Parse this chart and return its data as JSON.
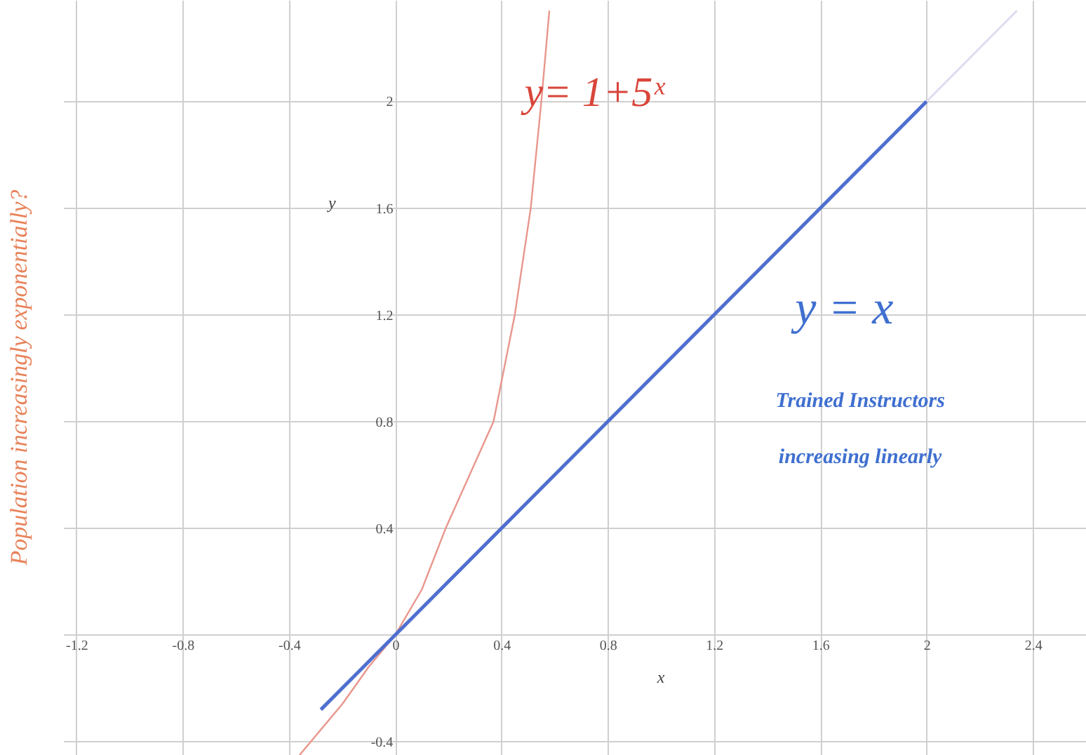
{
  "chart_data": {
    "type": "line",
    "xlabel": "x",
    "ylabel": "y",
    "series": [
      {
        "color": "#e8968c",
        "x": [
          -0.36,
          -0.2,
          -0.1,
          0,
          0.1,
          0.19,
          0.28,
          0.37,
          0.45,
          0.51,
          0.55,
          0.58
        ],
        "values": [
          -0.45,
          -0.26,
          -0.12,
          0,
          0.17,
          0.4,
          0.6,
          0.8,
          1.2,
          1.6,
          2.0,
          2.34
        ]
      },
      {
        "color": "#4f6fcf",
        "x": [
          -0.28,
          2
        ],
        "values": [
          -0.28,
          2
        ]
      },
      {
        "color": "#dcdcf0",
        "x": [
          2,
          2.34
        ],
        "values": [
          2,
          2.34
        ]
      }
    ],
    "annotations": [
      "y= 1+5ˣ",
      "y = x",
      "Trained Instructors",
      "increasing linearly",
      "Population increasingly exponentially?"
    ],
    "xlim": [
      -1.25,
      2.6
    ],
    "ylim": [
      -0.45,
      2.38
    ],
    "xticks": [
      -1.2,
      -0.8,
      -0.4,
      0,
      0.4,
      0.8,
      1.2,
      1.6,
      2,
      2.4
    ],
    "yticks": [
      -0.4,
      {
        "value": 0,
        "label": null
      },
      0.4,
      0.8,
      1.2,
      1.6,
      2
    ],
    "grid": true,
    "marker": "none",
    "line_style": "solid"
  }
}
